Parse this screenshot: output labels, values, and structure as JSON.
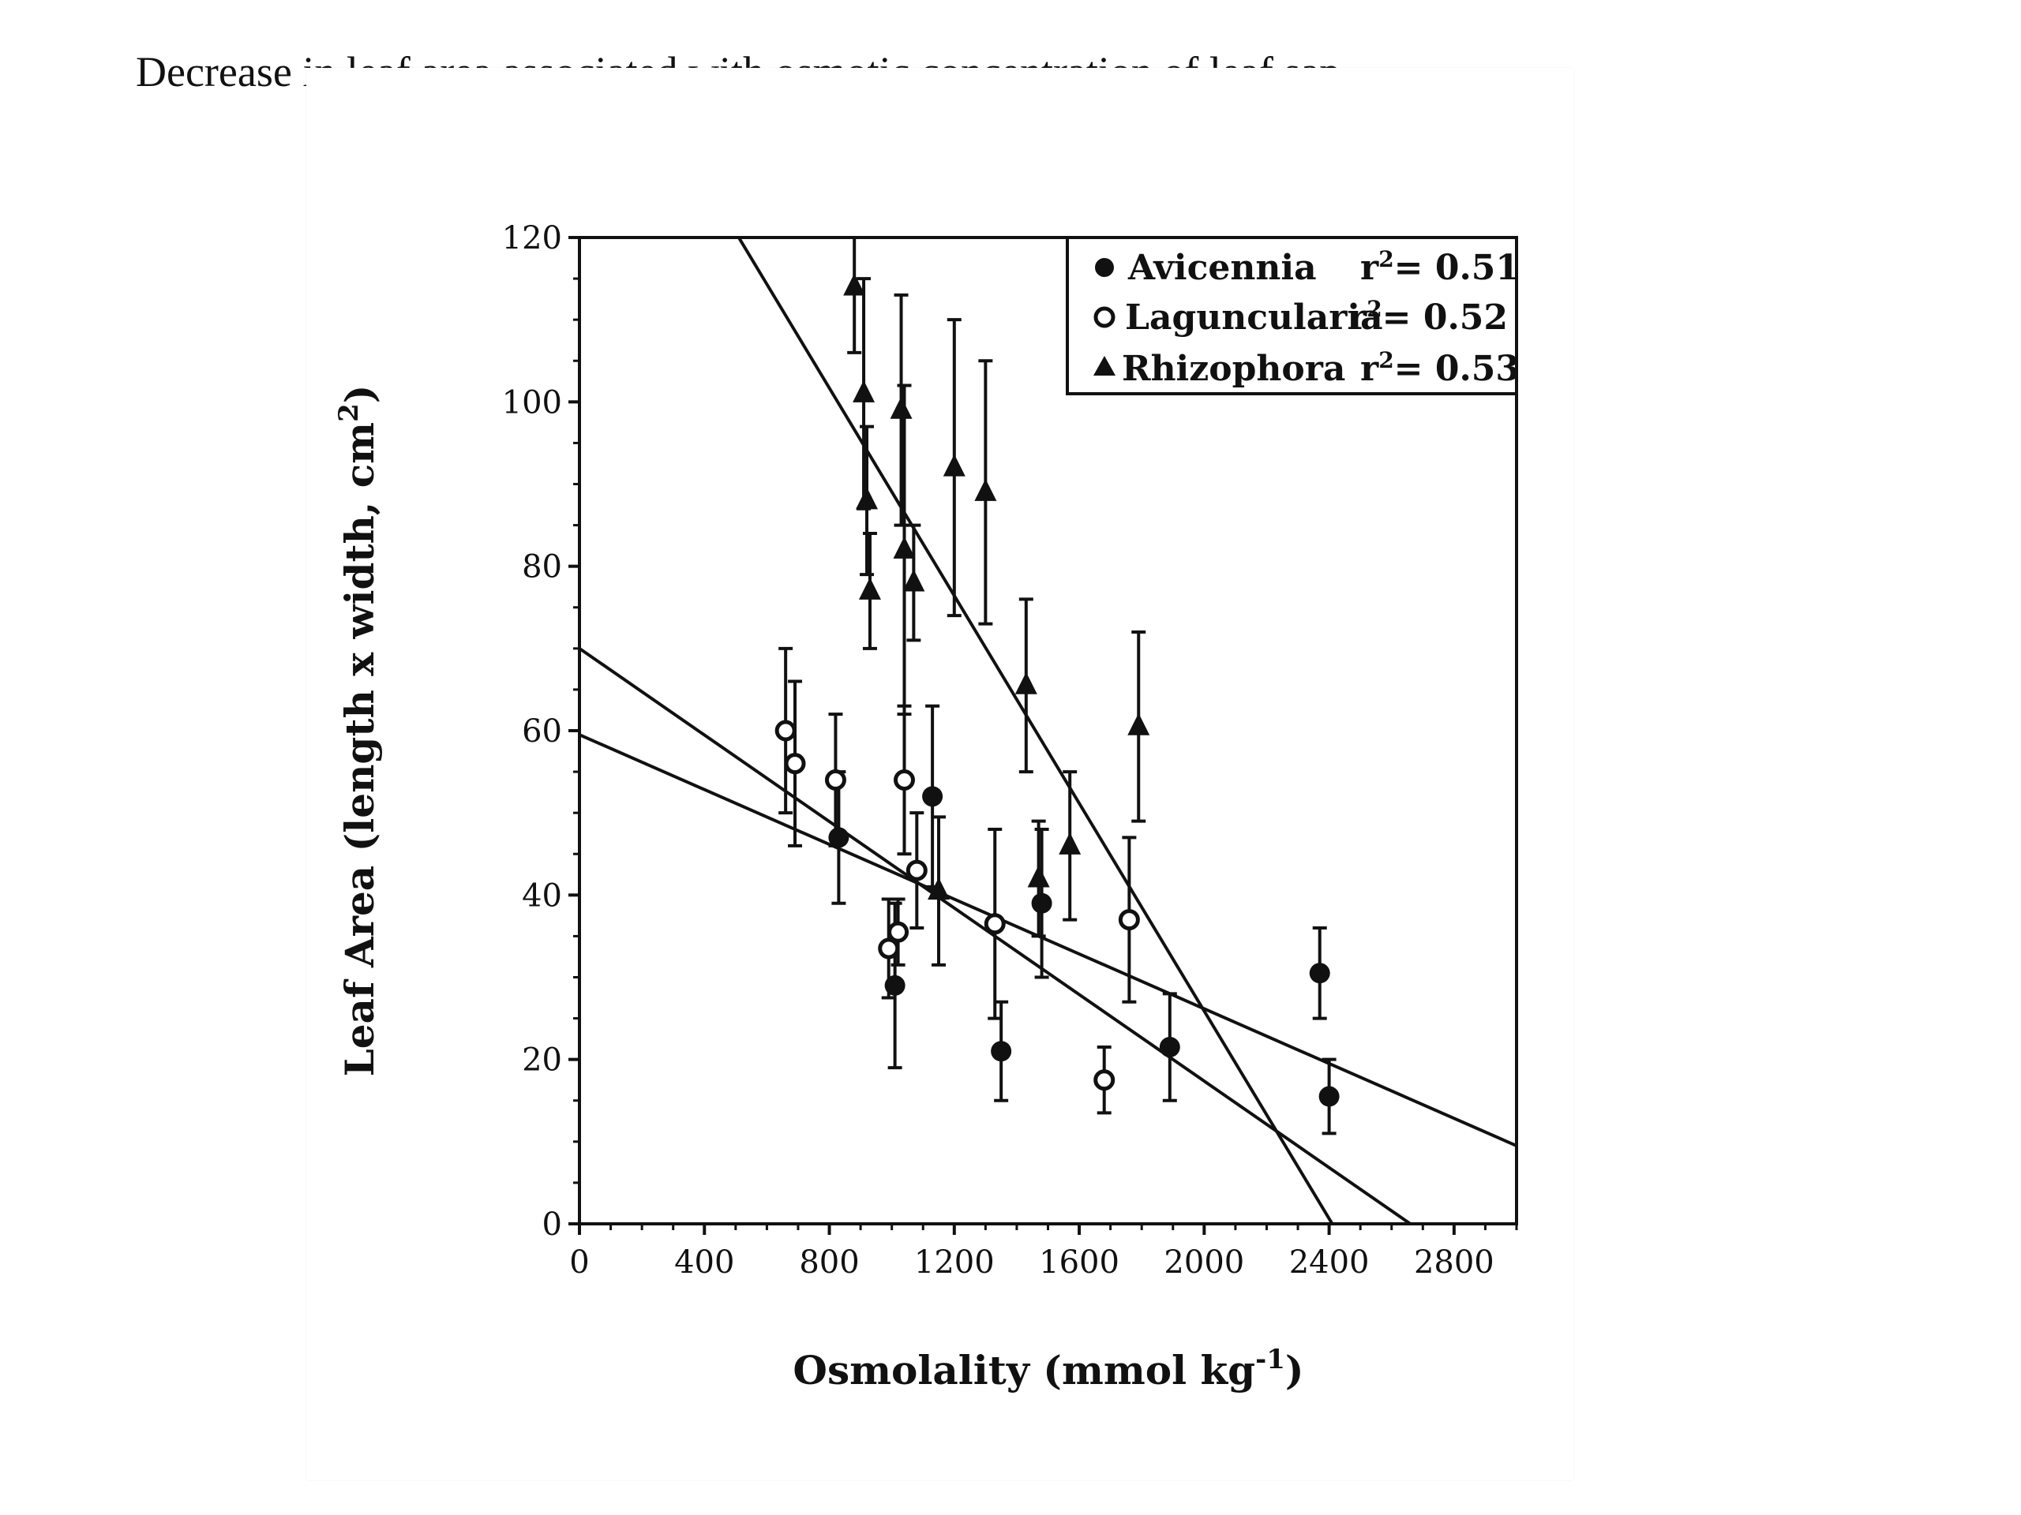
{
  "caption": "Decrease in leaf area associated with osmotic concentration of leaf sap",
  "chart_data": {
    "type": "scatter",
    "title": "",
    "xlabel": "Osmolality (mmol kg",
    "xlabel_sup": "-1",
    "xlabel_end": ")",
    "ylabel": "Leaf Area (length x width, cm",
    "ylabel_sup": "2",
    "ylabel_end": ")",
    "xlim": [
      0,
      3000
    ],
    "ylim": [
      0,
      120
    ],
    "xticks": [
      0,
      400,
      800,
      1200,
      1600,
      2000,
      2400,
      2800
    ],
    "yticks": [
      0,
      20,
      40,
      60,
      80,
      100,
      120
    ],
    "grid": false,
    "legend_position": "top-right",
    "series": [
      {
        "name": "Avicennia",
        "r2_label": "r",
        "r2_sup": "2",
        "r2_value": "= 0.51",
        "marker": "filled-circle",
        "points": [
          {
            "x": 830,
            "y": 47,
            "err": 8
          },
          {
            "x": 1130,
            "y": 52,
            "err": 11
          },
          {
            "x": 1010,
            "y": 29,
            "err": 10
          },
          {
            "x": 1350,
            "y": 21,
            "err": 6
          },
          {
            "x": 1480,
            "y": 39,
            "err": 9
          },
          {
            "x": 1890,
            "y": 21.5,
            "err": 6.5
          },
          {
            "x": 2370,
            "y": 30.5,
            "err": 5.5
          },
          {
            "x": 2400,
            "y": 15.5,
            "err": 4.5
          }
        ],
        "fit": {
          "x0": 0,
          "y0": 70,
          "x1": 2660,
          "y1": 0
        }
      },
      {
        "name": "Laguncularia",
        "r2_label": "r",
        "r2_sup": "2",
        "r2_value": "= 0.52",
        "marker": "open-circle",
        "points": [
          {
            "x": 660,
            "y": 60,
            "err": 10
          },
          {
            "x": 690,
            "y": 56,
            "err": 10
          },
          {
            "x": 820,
            "y": 54,
            "err": 8
          },
          {
            "x": 990,
            "y": 33.5,
            "err": 6
          },
          {
            "x": 1020,
            "y": 35.5,
            "err": 4
          },
          {
            "x": 1040,
            "y": 54,
            "err": 9
          },
          {
            "x": 1080,
            "y": 43,
            "err": 7
          },
          {
            "x": 1330,
            "y": 36.5,
            "err": 11.5
          },
          {
            "x": 1680,
            "y": 17.5,
            "err": 4
          },
          {
            "x": 1760,
            "y": 37,
            "err": 10
          }
        ],
        "fit": {
          "x0": 0,
          "y0": 59.5,
          "x1": 3000,
          "y1": 9.5
        }
      },
      {
        "name": "Rhizophora",
        "r2_label": "r",
        "r2_sup": "2",
        "r2_value": "= 0.53",
        "marker": "filled-triangle",
        "points": [
          {
            "x": 880,
            "y": 114,
            "err": 8
          },
          {
            "x": 910,
            "y": 101,
            "err": 14
          },
          {
            "x": 920,
            "y": 88,
            "err": 9
          },
          {
            "x": 930,
            "y": 77,
            "err": 7
          },
          {
            "x": 1030,
            "y": 99,
            "err": 14
          },
          {
            "x": 1040,
            "y": 82,
            "err": 20
          },
          {
            "x": 1070,
            "y": 78,
            "err": 7
          },
          {
            "x": 1200,
            "y": 92,
            "err": 18
          },
          {
            "x": 1300,
            "y": 89,
            "err": 16
          },
          {
            "x": 1430,
            "y": 65.5,
            "err": 10.5
          },
          {
            "x": 1470,
            "y": 42,
            "err": 7
          },
          {
            "x": 1570,
            "y": 46,
            "err": 9
          },
          {
            "x": 1790,
            "y": 60.5,
            "err": 11.5
          },
          {
            "x": 1150,
            "y": 40.5,
            "err": 9
          }
        ],
        "fit": {
          "x0": 510,
          "y0": 120,
          "x1": 2410,
          "y1": 0
        }
      }
    ]
  }
}
